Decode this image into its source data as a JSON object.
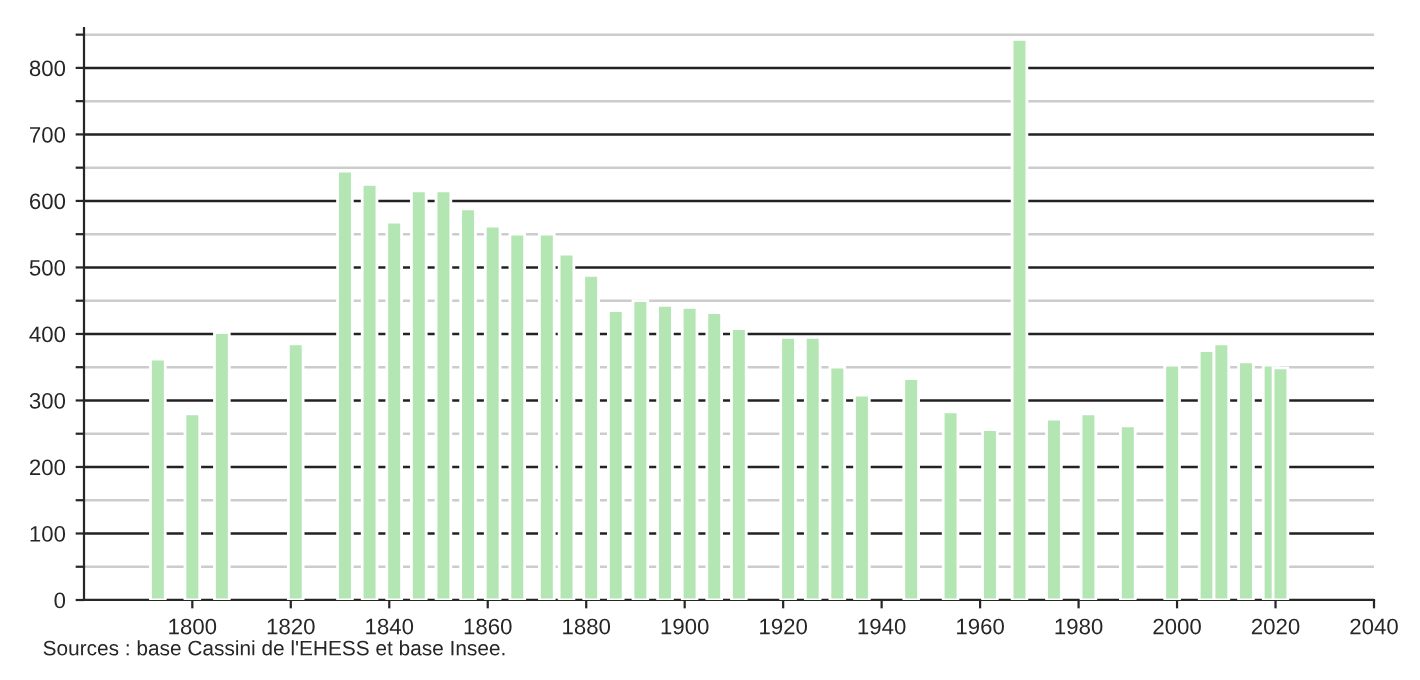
{
  "chart_data": {
    "type": "bar",
    "color": "#b3e6b3",
    "x": [
      1793,
      1800,
      1806,
      1821,
      1831,
      1836,
      1841,
      1846,
      1851,
      1856,
      1861,
      1866,
      1872,
      1876,
      1881,
      1886,
      1891,
      1896,
      1901,
      1906,
      1911,
      1921,
      1926,
      1931,
      1936,
      1946,
      1954,
      1962,
      1968,
      1975,
      1982,
      1990,
      1999,
      2006,
      2009,
      2014,
      2019,
      2021
    ],
    "values": [
      362,
      280,
      402,
      385,
      645,
      625,
      568,
      615,
      615,
      588,
      562,
      550,
      550,
      520,
      488,
      435,
      450,
      443,
      440,
      432,
      408,
      395,
      395,
      350,
      308,
      333,
      283,
      256,
      843,
      272,
      280,
      262,
      353,
      375,
      385,
      358,
      353,
      349
    ],
    "xlim": [
      1778,
      2040
    ],
    "xticks": [
      1800,
      1820,
      1840,
      1860,
      1880,
      1900,
      1920,
      1940,
      1960,
      1980,
      2000,
      2020,
      2040
    ],
    "ylim": [
      0,
      860
    ],
    "yticks": [
      0,
      {
        "value": 50,
        "label": null
      },
      100,
      {
        "value": 150,
        "label": null
      },
      200,
      {
        "value": 250,
        "label": null
      },
      300,
      {
        "value": 350,
        "label": null
      },
      400,
      {
        "value": 450,
        "label": null
      },
      500,
      {
        "value": 550,
        "label": null
      },
      600,
      {
        "value": 650,
        "label": null
      },
      700,
      {
        "value": 750,
        "label": null
      },
      800,
      {
        "value": 850,
        "label": null
      }
    ],
    "grid": "y",
    "annotations": [
      "Sources : base Cassini de l'EHESS et base Insee."
    ]
  }
}
